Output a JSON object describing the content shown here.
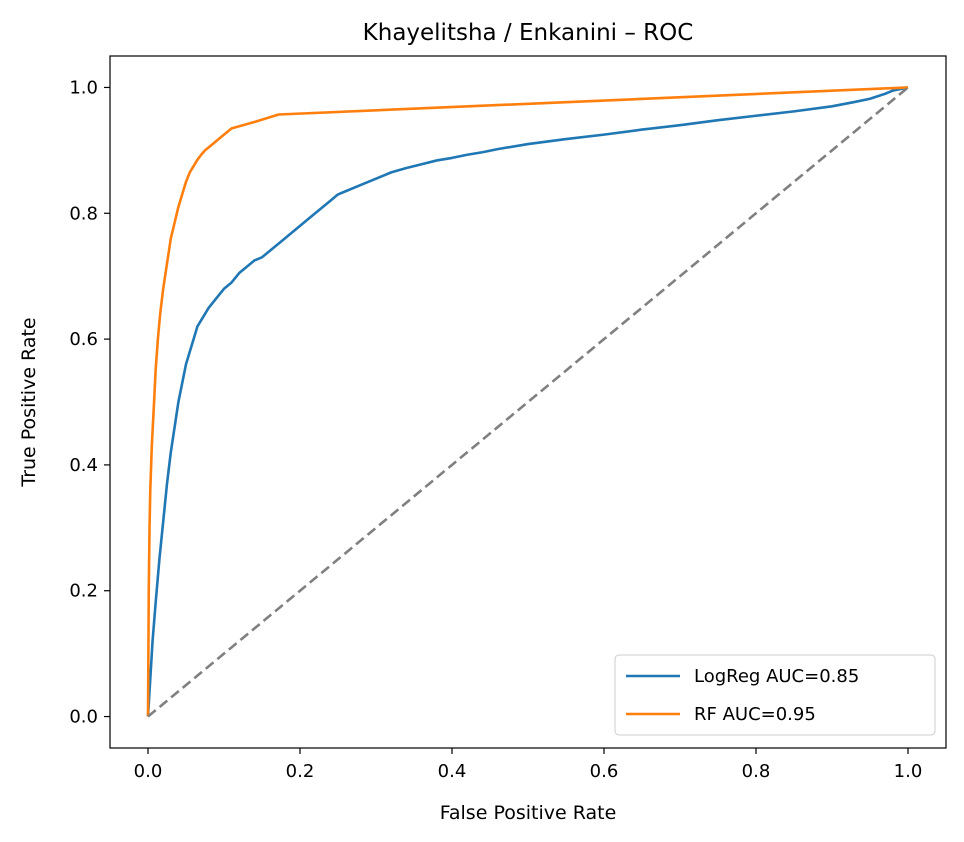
{
  "chart_data": {
    "type": "line",
    "title": "Khayelitsha / Enkanini – ROC",
    "xlabel": "False Positive Rate",
    "ylabel": "True Positive Rate",
    "xlim": [
      -0.05,
      1.05
    ],
    "ylim": [
      -0.05,
      1.05
    ],
    "xticks": [
      0.0,
      0.2,
      0.4,
      0.6,
      0.8,
      1.0
    ],
    "yticks": [
      0.0,
      0.2,
      0.4,
      0.6,
      0.8,
      1.0
    ],
    "xtick_labels": [
      "0.0",
      "0.2",
      "0.4",
      "0.6",
      "0.8",
      "1.0"
    ],
    "ytick_labels": [
      "0.0",
      "0.2",
      "0.4",
      "0.6",
      "0.8",
      "1.0"
    ],
    "grid": false,
    "legend_position": "lower-right",
    "series": [
      {
        "name": "LogReg AUC=0.85",
        "color": "#1f77b4",
        "style": "solid",
        "x": [
          0.0,
          0.003,
          0.006,
          0.01,
          0.015,
          0.02,
          0.025,
          0.03,
          0.035,
          0.04,
          0.045,
          0.05,
          0.055,
          0.06,
          0.065,
          0.07,
          0.075,
          0.08,
          0.09,
          0.1,
          0.11,
          0.12,
          0.13,
          0.14,
          0.15,
          0.16,
          0.17,
          0.18,
          0.19,
          0.2,
          0.21,
          0.22,
          0.23,
          0.24,
          0.25,
          0.26,
          0.28,
          0.3,
          0.32,
          0.34,
          0.36,
          0.38,
          0.4,
          0.42,
          0.44,
          0.46,
          0.5,
          0.55,
          0.6,
          0.65,
          0.7,
          0.75,
          0.8,
          0.85,
          0.9,
          0.93,
          0.95,
          0.97,
          0.98,
          1.0
        ],
        "y": [
          0.0,
          0.06,
          0.12,
          0.18,
          0.25,
          0.31,
          0.37,
          0.42,
          0.46,
          0.5,
          0.53,
          0.56,
          0.58,
          0.6,
          0.62,
          0.63,
          0.64,
          0.65,
          0.665,
          0.68,
          0.69,
          0.705,
          0.715,
          0.725,
          0.73,
          0.74,
          0.75,
          0.76,
          0.77,
          0.78,
          0.79,
          0.8,
          0.81,
          0.82,
          0.83,
          0.835,
          0.845,
          0.855,
          0.865,
          0.872,
          0.878,
          0.884,
          0.888,
          0.893,
          0.897,
          0.902,
          0.91,
          0.918,
          0.925,
          0.933,
          0.94,
          0.948,
          0.955,
          0.962,
          0.97,
          0.977,
          0.982,
          0.99,
          0.995,
          1.0
        ]
      },
      {
        "name": "RF AUC=0.95",
        "color": "#ff7f0e",
        "style": "solid",
        "x": [
          0.0,
          0.001,
          0.002,
          0.003,
          0.005,
          0.008,
          0.01,
          0.013,
          0.016,
          0.02,
          0.025,
          0.03,
          0.035,
          0.04,
          0.045,
          0.05,
          0.055,
          0.06,
          0.065,
          0.07,
          0.075,
          0.085,
          0.095,
          0.11,
          0.14,
          0.172,
          1.0
        ],
        "y": [
          0.0,
          0.2,
          0.3,
          0.36,
          0.43,
          0.5,
          0.55,
          0.6,
          0.64,
          0.68,
          0.72,
          0.76,
          0.785,
          0.81,
          0.83,
          0.85,
          0.865,
          0.875,
          0.885,
          0.893,
          0.9,
          0.91,
          0.92,
          0.935,
          0.945,
          0.957,
          1.0
        ]
      },
      {
        "name": "",
        "color": "#808080",
        "style": "dashed",
        "x": [
          0.0,
          1.0
        ],
        "y": [
          0.0,
          1.0
        ]
      }
    ]
  }
}
